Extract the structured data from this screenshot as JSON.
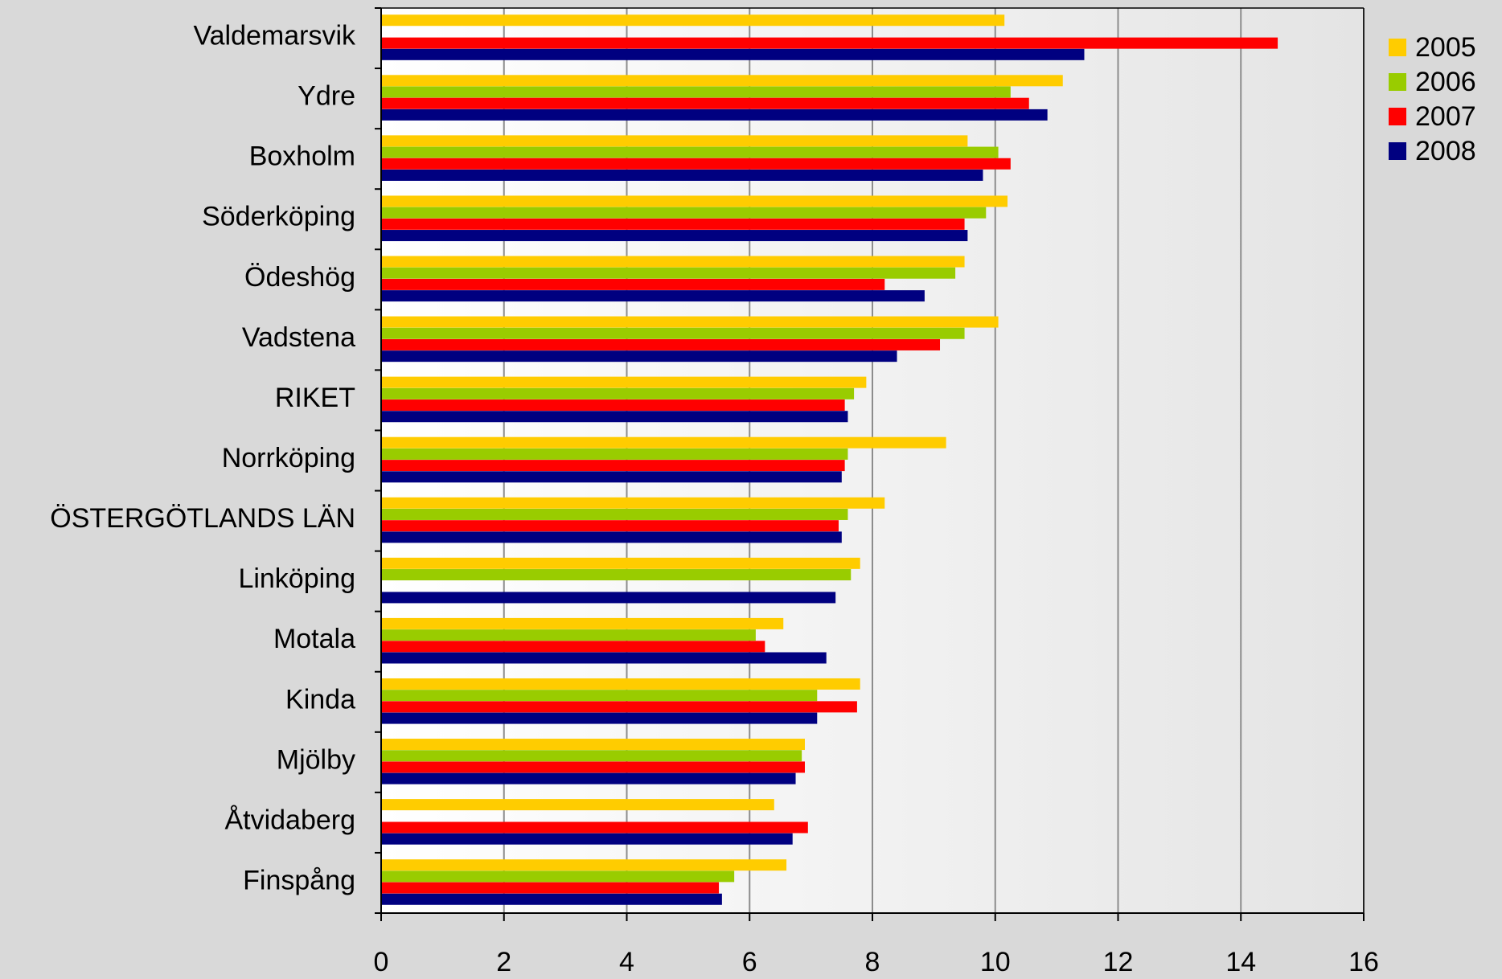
{
  "chart_data": {
    "type": "bar",
    "orientation": "horizontal",
    "title": "",
    "xlabel": "",
    "ylabel": "",
    "xlim": [
      0,
      16
    ],
    "x_ticks": [
      0,
      2,
      4,
      6,
      8,
      10,
      12,
      14,
      16
    ],
    "grid": "vertical",
    "legend_position": "top-right",
    "categories": [
      "Valdemarsvik",
      "Ydre",
      "Boxholm",
      "Söderköping",
      "Ödeshög",
      "Vadstena",
      "RIKET",
      "Norrköping",
      "ÖSTERGÖTLANDS LÄN",
      "Linköping",
      "Motala",
      "Kinda",
      "Mjölby",
      "Åtvidaberg",
      "Finspång"
    ],
    "series": [
      {
        "name": "2005",
        "color": "#ffcc00",
        "values": [
          10.15,
          11.1,
          9.55,
          10.2,
          9.5,
          10.05,
          7.9,
          9.2,
          8.2,
          7.8,
          6.55,
          7.8,
          6.9,
          6.4,
          6.6
        ]
      },
      {
        "name": "2006",
        "color": "#99cc00",
        "values": [
          null,
          10.25,
          10.05,
          9.85,
          9.35,
          9.5,
          7.7,
          7.6,
          7.6,
          7.65,
          6.1,
          7.1,
          6.85,
          null,
          5.75
        ]
      },
      {
        "name": "2007",
        "color": "#ff0000",
        "values": [
          14.6,
          10.55,
          10.25,
          9.5,
          8.2,
          9.1,
          7.55,
          7.55,
          7.45,
          null,
          6.25,
          7.75,
          6.9,
          6.95,
          5.5
        ]
      },
      {
        "name": "2008",
        "color": "#000080",
        "values": [
          11.45,
          10.85,
          9.8,
          9.55,
          8.85,
          8.4,
          7.6,
          7.5,
          7.5,
          7.4,
          7.25,
          7.1,
          6.75,
          6.7,
          5.55
        ]
      }
    ]
  }
}
